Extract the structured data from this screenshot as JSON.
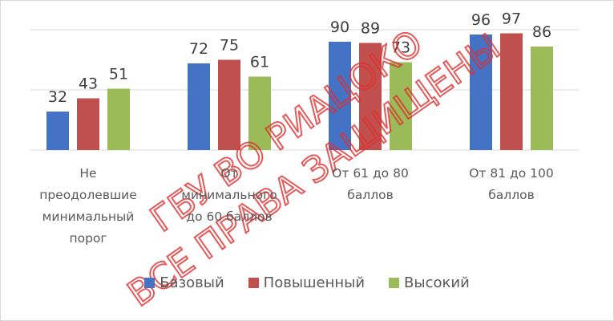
{
  "chart_data": {
    "type": "bar",
    "categories": [
      "Не преодолевшие минимальный порог",
      "От минимального до 60 баллов",
      "От 61 до 80 баллов",
      "От 81 до 100 баллов"
    ],
    "series": [
      {
        "name": "Базовый",
        "color": "#4472c4",
        "values": [
          32,
          72,
          90,
          96
        ]
      },
      {
        "name": "Повышенный",
        "color": "#c0504d",
        "values": [
          43,
          75,
          89,
          97
        ]
      },
      {
        "name": "Высокий",
        "color": "#9bbb59",
        "values": [
          51,
          61,
          73,
          86
        ]
      }
    ],
    "ylim": [
      0,
      100
    ],
    "yticks": [
      0,
      50,
      100
    ],
    "grid": true,
    "watermark": [
      "ГБУ ВО РИАЦОКО",
      "ВСЕ ПРАВА ЗАЩИЩЕНЫ"
    ]
  }
}
